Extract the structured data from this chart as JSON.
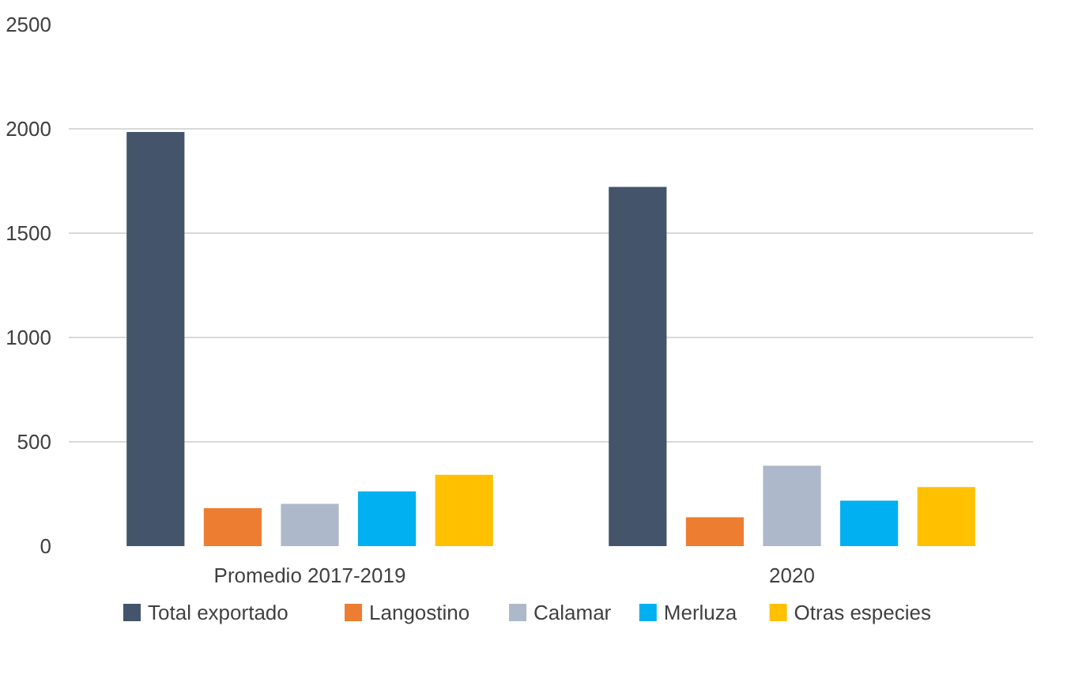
{
  "chart_data": {
    "type": "bar",
    "categories": [
      "Promedio 2017-2019",
      "2020"
    ],
    "series": [
      {
        "name": "Total exportado",
        "color": "#44546a",
        "values": [
          1985,
          1722
        ]
      },
      {
        "name": "Langostino",
        "color": "#ed7d31",
        "values": [
          182,
          138
        ]
      },
      {
        "name": "Calamar",
        "color": "#adb9ca",
        "values": [
          203,
          385
        ]
      },
      {
        "name": "Merluza",
        "color": "#00b0f0",
        "values": [
          262,
          218
        ]
      },
      {
        "name": "Otras especies",
        "color": "#ffc000",
        "values": [
          342,
          283
        ]
      }
    ],
    "ylim": [
      0,
      2500
    ],
    "yticks": [
      0,
      500,
      1000,
      1500,
      2000,
      2500
    ],
    "grid": "y",
    "legend": "bottom"
  }
}
